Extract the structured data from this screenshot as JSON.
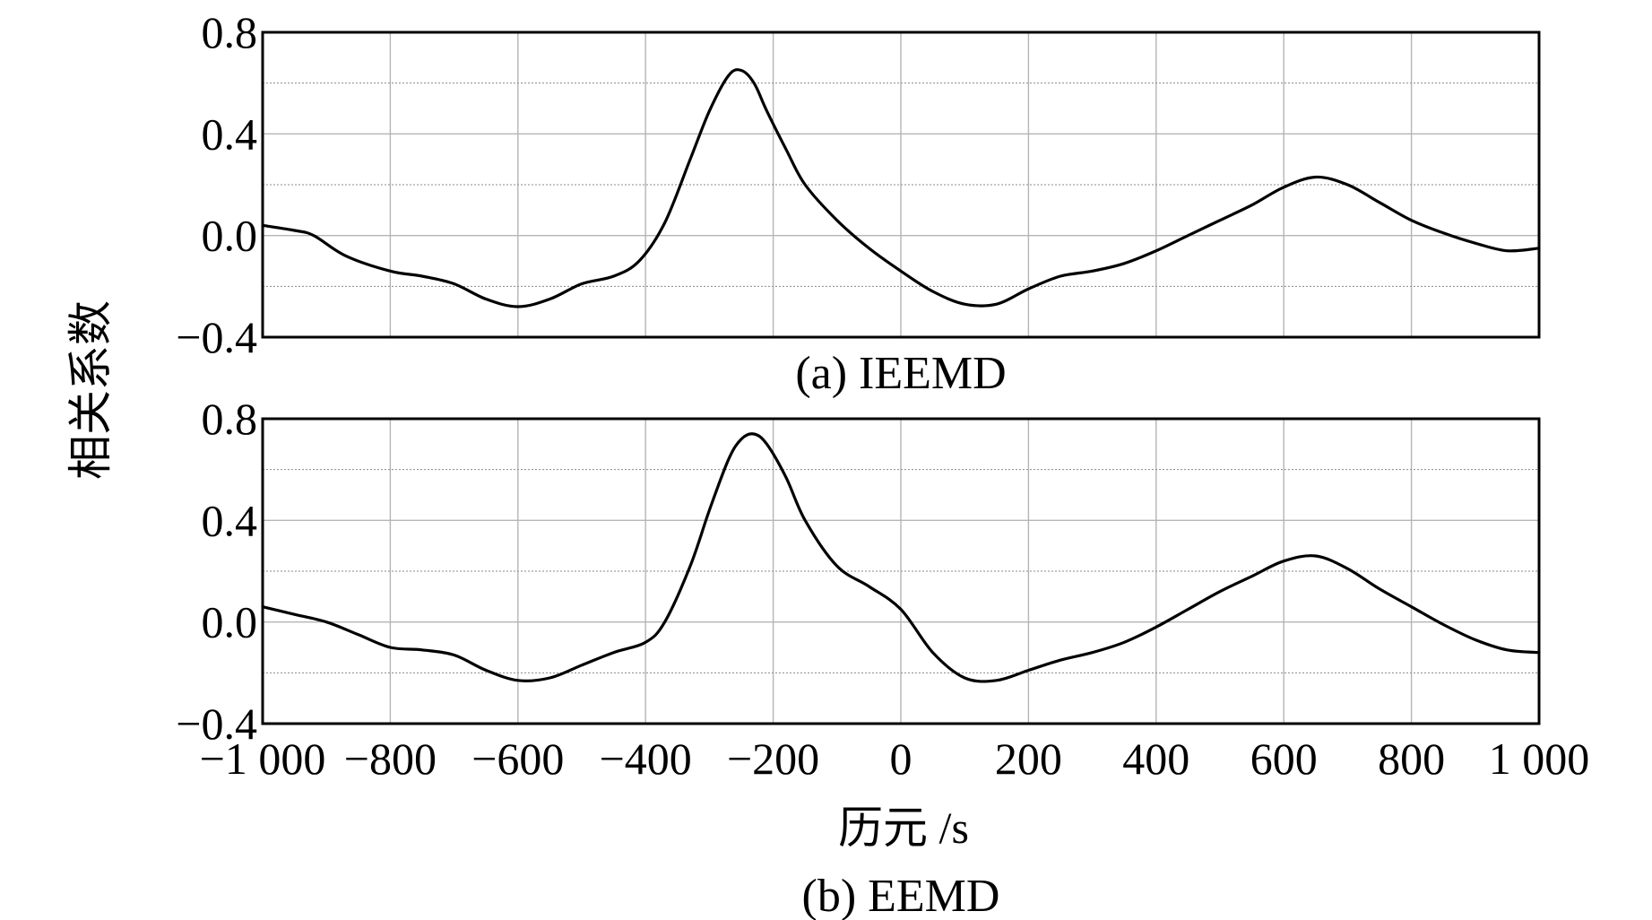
{
  "ylabel": "相关系数",
  "chart_data": [
    {
      "type": "line",
      "caption": "(a) IEEMD",
      "xlabel": "",
      "ylabel": "相关系数",
      "xlim": [
        -1000,
        1000
      ],
      "ylim": [
        -0.4,
        0.8
      ],
      "yticks": [
        "0.8",
        "0.4",
        "0.0",
        "−0.4"
      ],
      "ytick_values": [
        0.8,
        0.4,
        0.0,
        -0.4
      ],
      "xtick_values": [
        -1000,
        -800,
        -600,
        -400,
        -200,
        0,
        200,
        400,
        600,
        800,
        1000
      ],
      "xticks_shown": false,
      "grid": true,
      "series": [
        {
          "x": [
            -1000,
            -950,
            -920,
            -870,
            -800,
            -750,
            -700,
            -650,
            -600,
            -550,
            -500,
            -450,
            -410,
            -370,
            -330,
            -300,
            -270,
            -250,
            -230,
            -210,
            -180,
            -150,
            -100,
            -50,
            0,
            50,
            100,
            150,
            200,
            250,
            300,
            350,
            400,
            450,
            500,
            550,
            600,
            650,
            700,
            750,
            800,
            850,
            900,
            950,
            1000
          ],
          "y": [
            0.04,
            0.02,
            0.0,
            -0.08,
            -0.14,
            -0.16,
            -0.19,
            -0.25,
            -0.28,
            -0.25,
            -0.19,
            -0.16,
            -0.1,
            0.05,
            0.3,
            0.49,
            0.63,
            0.65,
            0.6,
            0.49,
            0.34,
            0.2,
            0.06,
            -0.05,
            -0.14,
            -0.22,
            -0.27,
            -0.27,
            -0.21,
            -0.16,
            -0.14,
            -0.11,
            -0.06,
            0.0,
            0.06,
            0.12,
            0.19,
            0.23,
            0.2,
            0.13,
            0.06,
            0.01,
            -0.03,
            -0.06,
            -0.05
          ]
        }
      ]
    },
    {
      "type": "line",
      "caption": "(b) EEMD",
      "xlabel": "历元 /s",
      "ylabel": "相关系数",
      "xlim": [
        -1000,
        1000
      ],
      "ylim": [
        -0.4,
        0.8
      ],
      "yticks": [
        "0.8",
        "0.4",
        "0.0",
        "−0.4"
      ],
      "ytick_values": [
        0.8,
        0.4,
        0.0,
        -0.4
      ],
      "xtick_values": [
        -1000,
        -800,
        -600,
        -400,
        -200,
        0,
        200,
        400,
        600,
        800,
        1000
      ],
      "xticks": [
        "−1 000",
        "−800",
        "−600",
        "−400",
        "−200",
        "0",
        "200",
        "400",
        "600",
        "800",
        "1 000"
      ],
      "grid": true,
      "series": [
        {
          "x": [
            -1000,
            -950,
            -900,
            -850,
            -800,
            -750,
            -700,
            -650,
            -600,
            -550,
            -500,
            -450,
            -400,
            -370,
            -330,
            -300,
            -270,
            -250,
            -230,
            -210,
            -180,
            -150,
            -100,
            -50,
            0,
            50,
            100,
            150,
            200,
            250,
            300,
            350,
            400,
            450,
            500,
            550,
            600,
            650,
            700,
            750,
            800,
            850,
            900,
            950,
            1000
          ],
          "y": [
            0.06,
            0.03,
            0.0,
            -0.05,
            -0.1,
            -0.11,
            -0.13,
            -0.19,
            -0.23,
            -0.22,
            -0.17,
            -0.12,
            -0.08,
            0.0,
            0.22,
            0.44,
            0.64,
            0.72,
            0.74,
            0.7,
            0.57,
            0.4,
            0.22,
            0.14,
            0.05,
            -0.12,
            -0.22,
            -0.23,
            -0.19,
            -0.15,
            -0.12,
            -0.08,
            -0.02,
            0.05,
            0.12,
            0.18,
            0.24,
            0.26,
            0.21,
            0.13,
            0.06,
            -0.01,
            -0.07,
            -0.11,
            -0.12
          ]
        }
      ]
    }
  ]
}
